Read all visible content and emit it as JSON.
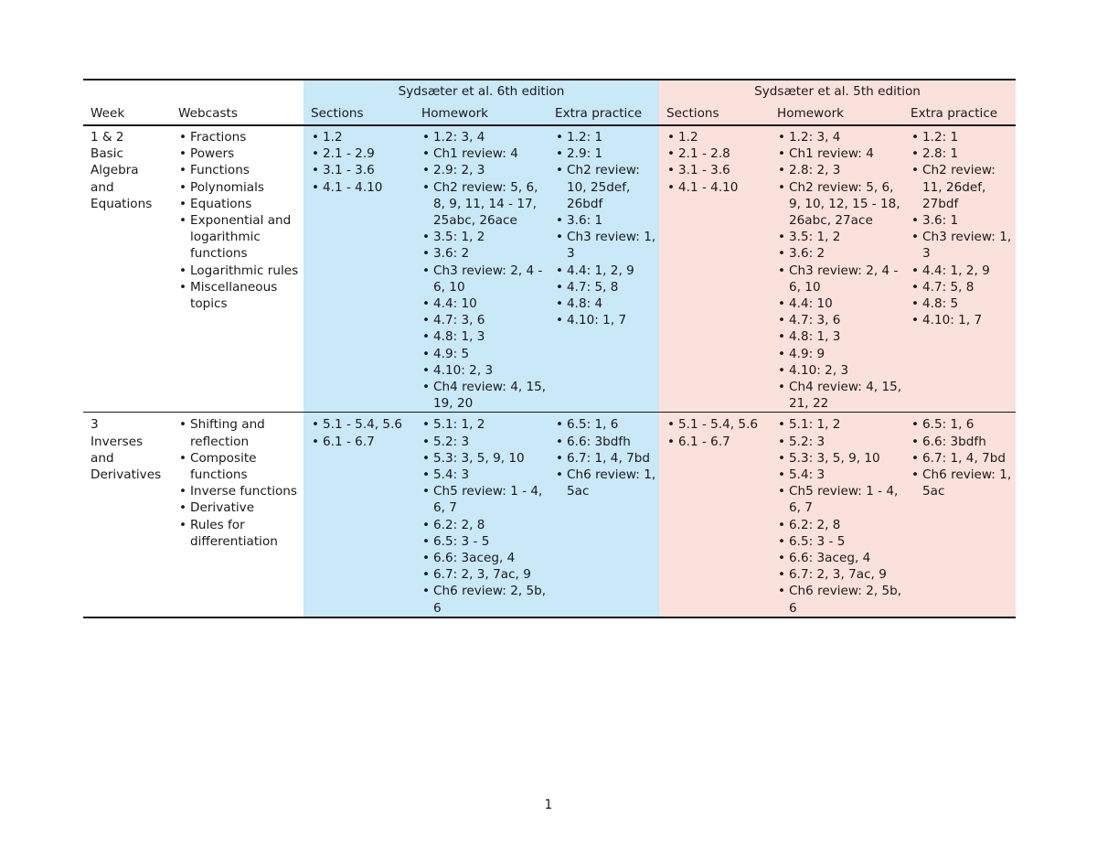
{
  "header": {
    "edition6": "Sydsæter et al. 6th edition",
    "edition5": "Sydsæter et al. 5th edition",
    "week": "Week",
    "webcasts": "Webcasts",
    "sections": "Sections",
    "homework": "Homework",
    "extra": "Extra practice"
  },
  "rows": [
    {
      "week_number": "1 & 2",
      "week_title_lines": [
        "Basic",
        "Algebra",
        "and",
        "Equations"
      ],
      "webcasts": [
        "Fractions",
        "Powers",
        "Functions",
        "Polynomials",
        "Equations",
        "Exponential and logarithmic functions",
        "Logarithmic rules",
        "Miscellaneous topics"
      ],
      "ed6": {
        "sections": [
          "1.2",
          "2.1 - 2.9",
          "3.1 - 3.6",
          "4.1 - 4.10"
        ],
        "homework": [
          "1.2: 3, 4",
          "Ch1 review: 4",
          "2.9: 2, 3",
          "Ch2 review: 5, 6, 8, 9, 11, 14 - 17, 25abc, 26ace",
          "3.5: 1, 2",
          "3.6: 2",
          "Ch3 review: 2, 4 - 6, 10",
          "4.4: 10",
          "4.7: 3, 6",
          "4.8: 1, 3",
          "4.9: 5",
          "4.10: 2, 3",
          "Ch4 review: 4, 15, 19, 20"
        ],
        "extra": [
          "1.2: 1",
          "2.9: 1",
          "Ch2 review: 10, 25def, 26bdf",
          "3.6: 1",
          "Ch3 review: 1, 3",
          "4.4: 1, 2, 9",
          "4.7: 5, 8",
          "4.8: 4",
          "4.10: 1, 7"
        ]
      },
      "ed5": {
        "sections": [
          "1.2",
          "2.1 - 2.8",
          "3.1 - 3.6",
          "4.1 - 4.10"
        ],
        "homework": [
          "1.2: 3, 4",
          "Ch1 review: 4",
          "2.8: 2, 3",
          "Ch2 review: 5, 6, 9, 10, 12, 15 - 18, 26abc, 27ace",
          "3.5: 1, 2",
          "3.6: 2",
          "Ch3 review: 2, 4 - 6, 10",
          "4.4: 10",
          "4.7: 3, 6",
          "4.8: 1, 3",
          "4.9: 9",
          "4.10: 2, 3",
          "Ch4 review: 4, 15, 21, 22"
        ],
        "extra": [
          "1.2: 1",
          "2.8: 1",
          "Ch2 review: 11, 26def, 27bdf",
          "3.6: 1",
          "Ch3 review: 1, 3",
          "4.4: 1, 2, 9",
          "4.7: 5, 8",
          "4.8: 5",
          "4.10: 1, 7"
        ]
      }
    },
    {
      "week_number": "3",
      "week_title_lines": [
        "Inverses",
        "and",
        "Derivatives"
      ],
      "webcasts": [
        "Shifting and reflection",
        "Composite functions",
        "Inverse functions",
        "Derivative",
        "Rules for differentiation"
      ],
      "ed6": {
        "sections": [
          "5.1 - 5.4, 5.6",
          "6.1 - 6.7"
        ],
        "homework": [
          "5.1: 1, 2",
          "5.2: 3",
          "5.3: 3, 5, 9, 10",
          "5.4: 3",
          "Ch5 review: 1 - 4, 6, 7",
          "6.2: 2, 8",
          "6.5: 3 - 5",
          "6.6: 3aceg, 4",
          "6.7: 2, 3, 7ac, 9",
          "Ch6 review: 2, 5b, 6"
        ],
        "extra": [
          "6.5: 1, 6",
          "6.6: 3bdfh",
          "6.7: 1, 4, 7bd",
          "Ch6 review: 1, 5ac"
        ]
      },
      "ed5": {
        "sections": [
          "5.1 - 5.4, 5.6",
          "6.1 - 6.7"
        ],
        "homework": [
          "5.1: 1, 2",
          "5.2: 3",
          "5.3: 3, 5, 9, 10",
          "5.4: 3",
          "Ch5 review: 1 - 4, 6, 7",
          "6.2: 2, 8",
          "6.5: 3 - 5",
          "6.6: 3aceg, 4",
          "6.7: 2, 3, 7ac, 9",
          "Ch6 review: 2, 5b, 6"
        ],
        "extra": [
          "6.5: 1, 6",
          "6.6: 3bdfh",
          "6.7: 1, 4, 7bd",
          "Ch6 review: 1, 5ac"
        ]
      }
    }
  ],
  "page_number": "1",
  "colors": {
    "edition6_bg": "#c9e8f8",
    "edition5_bg": "#fbe1dc"
  }
}
